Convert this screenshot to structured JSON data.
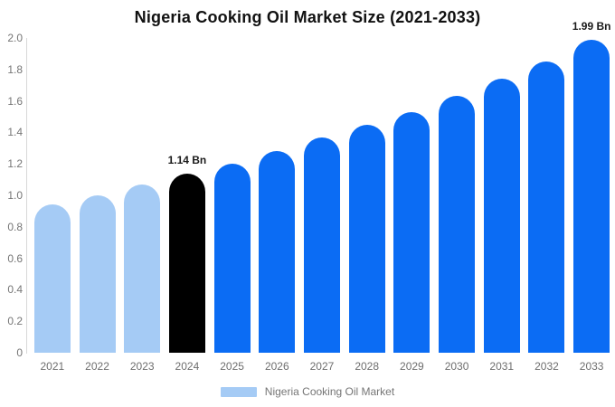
{
  "chart_data": {
    "type": "bar",
    "title": "Nigeria Cooking Oil Market Size (2021-2033)",
    "categories": [
      "2021",
      "2022",
      "2023",
      "2024",
      "2025",
      "2026",
      "2027",
      "2028",
      "2029",
      "2030",
      "2031",
      "2032",
      "2033"
    ],
    "values": [
      0.94,
      1.0,
      1.07,
      1.14,
      1.2,
      1.28,
      1.37,
      1.45,
      1.53,
      1.63,
      1.74,
      1.85,
      1.99
    ],
    "unit": "Bn",
    "xlabel": "",
    "ylabel": "",
    "ylim": [
      0,
      2.0
    ],
    "ytick_labels": [
      "0",
      "0.2",
      "0.4",
      "0.6",
      "0.8",
      "1.0",
      "1.2",
      "1.4",
      "1.6",
      "1.8",
      "2.0"
    ],
    "ytick_values": [
      0,
      0.2,
      0.4,
      0.6,
      0.8,
      1.0,
      1.2,
      1.4,
      1.6,
      1.8,
      2.0
    ],
    "grid": false,
    "legend_position": "bottom",
    "bar_colors": [
      "#a5cbf5",
      "#a5cbf5",
      "#a5cbf5",
      "#000000",
      "#0b6cf4",
      "#0b6cf4",
      "#0b6cf4",
      "#0b6cf4",
      "#0b6cf4",
      "#0b6cf4",
      "#0b6cf4",
      "#0b6cf4",
      "#0b6cf4"
    ],
    "annotations": [
      {
        "category": "2024",
        "text": "1.14 Bn"
      },
      {
        "category": "2033",
        "text": "1.99 Bn"
      }
    ],
    "legend": [
      {
        "label": "Nigeria Cooking Oil Market",
        "color": "#a5cbf5"
      }
    ]
  },
  "colors": {
    "past_bar": "#a5cbf5",
    "current_bar": "#000000",
    "forecast_bar": "#0b6cf4",
    "axis_line": "#d8d8d8",
    "tick_text": "#757575",
    "annotation_text": "#1a1a1a",
    "title_text": "#111111",
    "background": "#ffffff"
  }
}
